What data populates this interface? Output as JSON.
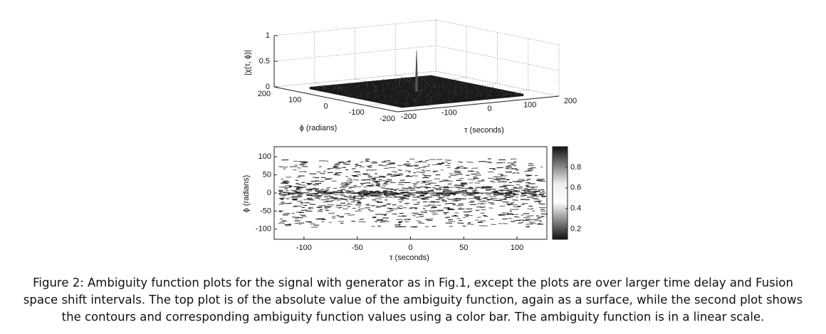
{
  "chart_data": [
    {
      "type": "surface3d",
      "zlabel": "|χ(τ, ϕ)|",
      "ylabel": "ϕ (radians)",
      "xlabel": "τ (seconds)",
      "zlim": [
        0,
        1
      ],
      "zticks": [
        0,
        0.5,
        1
      ],
      "ylim": [
        -200,
        200
      ],
      "yticks": [
        200,
        100,
        0,
        -100,
        -200
      ],
      "xlim": [
        -200,
        200
      ],
      "xticks": [
        -200,
        -100,
        0,
        100,
        200
      ],
      "peak": 0.8,
      "color": "#1a1a1a",
      "grid": true
    },
    {
      "type": "contour",
      "xlabel": "τ (seconds)",
      "ylabel": "ϕ (radians)",
      "xlim": [
        -128,
        128
      ],
      "xticks": [
        -100,
        -50,
        0,
        50,
        100
      ],
      "ylim": [
        -128,
        128
      ],
      "yticks": [
        100,
        50,
        0,
        -50,
        -100
      ],
      "clim": [
        0.1,
        1.0
      ],
      "cticks": [
        0.8,
        0.6,
        0.4,
        0.2
      ]
    }
  ],
  "caption_lines": [
    "Figure 2: Ambiguity function plots for the signal with generator as in Fig.1, except the plots are over larger time delay and Fusion",
    "space shift intervals. The top plot is of the absolute value of the ambiguity function, again as a surface, while the second plot shows",
    "the contours and corresponding ambiguity function values using a color bar. The ambiguity function is in a linear scale."
  ]
}
